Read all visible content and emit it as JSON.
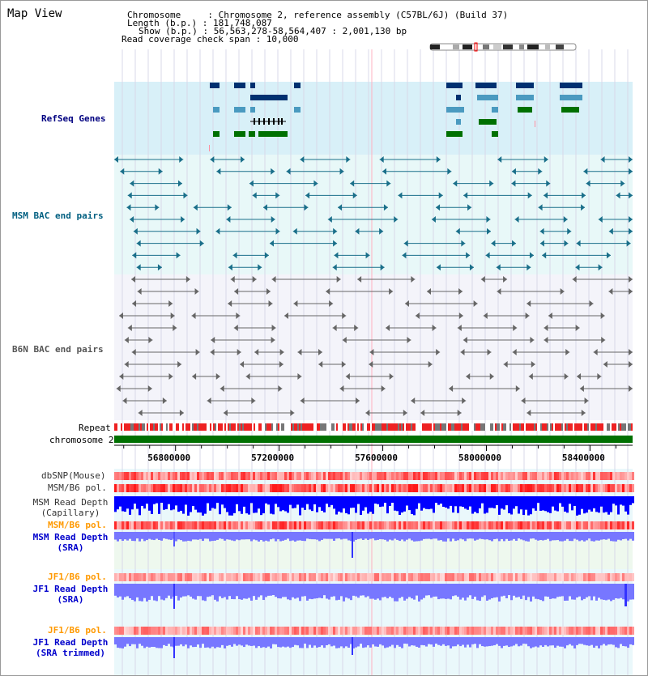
{
  "view": {
    "title": "Map View",
    "info_lines": [
      "Chromosome     : Chromosome 2, reference assembly (C57BL/6J) (Build 37)",
      "Length (b.p.) : 181,748,087",
      "Show (b.p.) : 56,563,278-58,564,407 : 2,001,130 bp",
      "Read coverage check span : 10,000"
    ]
  },
  "tracks": {
    "refseq": {
      "label": "RefSeq Genes",
      "color": "#000080"
    },
    "msm_bac": {
      "label": "MSM BAC end pairs",
      "color": "#005f80"
    },
    "b6n_bac": {
      "label": "B6N BAC end pairs",
      "color": "#555555"
    },
    "repeat": {
      "label": "Repeat"
    },
    "chromosome": {
      "label": "chromosome 2"
    },
    "dbsnp": {
      "label": "dbSNP(Mouse)"
    },
    "msm_b6_pol": {
      "label": "MSM/B6 pol."
    },
    "msm_depth_cap": {
      "line1": "MSM Read Depth",
      "line2": "(Capillary)"
    },
    "msm_b6_pol2": {
      "label": "MSM/B6 pol.",
      "color": "#ff9900"
    },
    "msm_depth_sra": {
      "line1": "MSM Read Depth",
      "line2": "(SRA)",
      "color": "#0000cc"
    },
    "jf1_b6_pol": {
      "label": "JF1/B6 pol.",
      "color": "#ff9900"
    },
    "jf1_depth_sra": {
      "line1": "JF1 Read Depth",
      "line2": "(SRA)",
      "color": "#0000cc"
    },
    "jf1_b6_pol2": {
      "label": "JF1/B6 pol.",
      "color": "#ff9900"
    },
    "jf1_depth_trim": {
      "line1": "JF1 Read Depth",
      "line2": "(SRA trimmed)",
      "color": "#0000cc"
    }
  },
  "axis": {
    "range_start": 56563278,
    "range_end": 58564407,
    "tick_labels": [
      "56800000",
      "57200000",
      "57600000",
      "58000000",
      "58400000"
    ],
    "tick_values": [
      56800000,
      57200000,
      57600000,
      58000000,
      58400000
    ]
  },
  "colors": {
    "refseq_bg": "#d8f0f8",
    "msm_bg": "#e8f8f8",
    "b6n_bg": "#f4f4fa",
    "chrom_green": "#007000",
    "snp_red": "#ff0000",
    "depth_dark": "#0000ff",
    "depth_light": "#7777ff",
    "gene_dark": "#003070",
    "gene_light": "#4a9ac0",
    "gene_green": "#007000"
  }
}
